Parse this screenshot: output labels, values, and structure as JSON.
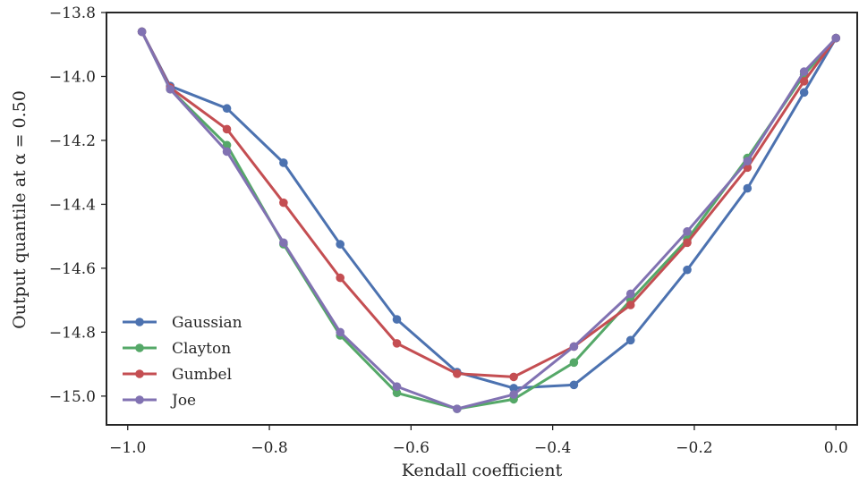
{
  "chart_data": {
    "type": "line",
    "title": "",
    "xlabel": "Kendall coefficient",
    "ylabel": "Output quantile at α = 0.50",
    "xlim": [
      -1.03,
      0.03
    ],
    "ylim": [
      -15.09,
      -13.8
    ],
    "xticks": [
      -1.0,
      -0.8,
      -0.6,
      -0.4,
      -0.2,
      0.0
    ],
    "xtick_labels": [
      "−1.0",
      "−0.8",
      "−0.6",
      "−0.4",
      "−0.2",
      "0.0"
    ],
    "yticks": [
      -13.8,
      -14.0,
      -14.2,
      -14.4,
      -14.6,
      -14.8,
      -15.0
    ],
    "ytick_labels": [
      "−13.8",
      "−14.0",
      "−14.2",
      "−14.4",
      "−14.6",
      "−14.8",
      "−15.0"
    ],
    "grid": false,
    "legend_position": "lower-left",
    "x": [
      -0.98,
      -0.94,
      -0.86,
      -0.78,
      -0.7,
      -0.62,
      -0.535,
      -0.455,
      -0.37,
      -0.29,
      -0.21,
      -0.125,
      -0.045,
      0.0
    ],
    "series": [
      {
        "name": "Gaussian",
        "color": "#4c72b0",
        "values": [
          -13.86,
          -14.03,
          -14.1,
          -14.27,
          -14.525,
          -14.76,
          -14.925,
          -14.975,
          -14.965,
          -14.825,
          -14.605,
          -14.35,
          -14.05,
          -13.88
        ]
      },
      {
        "name": "Clayton",
        "color": "#55a868",
        "values": [
          -13.86,
          -14.04,
          -14.215,
          -14.525,
          -14.81,
          -14.99,
          -15.04,
          -15.01,
          -14.895,
          -14.7,
          -14.51,
          -14.255,
          -13.995,
          -13.88
        ]
      },
      {
        "name": "Gumbel",
        "color": "#c44e52",
        "values": [
          -13.86,
          -14.035,
          -14.165,
          -14.395,
          -14.63,
          -14.835,
          -14.93,
          -14.94,
          -14.845,
          -14.715,
          -14.52,
          -14.285,
          -14.015,
          -13.88
        ]
      },
      {
        "name": "Joe",
        "color": "#8172b2",
        "values": [
          -13.86,
          -14.04,
          -14.235,
          -14.52,
          -14.8,
          -14.97,
          -15.04,
          -14.995,
          -14.845,
          -14.68,
          -14.485,
          -14.265,
          -13.985,
          -13.88
        ]
      }
    ]
  }
}
